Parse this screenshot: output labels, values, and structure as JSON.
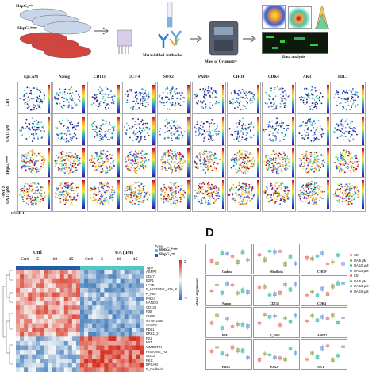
{
  "workflow": {
    "cell_label_top": "HepG₂ᶜʳᵒⁿ",
    "cell_label_bottom": "HepG₂ᴬᵛⁿᵘᵉ",
    "antibody_label": "Metal-labled antibodies",
    "cytometry_label": "Mass of Cytometry",
    "analysis_label": "Data analysis"
  },
  "tsne": {
    "markers": [
      "EpCAM",
      "Nanog",
      "CD133",
      "OCT-4",
      "SOX2",
      "PADI4",
      "CHOP",
      "CDK4",
      "AKT",
      "PDL1"
    ],
    "rows": [
      "Ctrl",
      "UA 15 μM",
      "HepG₂ᴬᵛⁿᵘᵉ",
      "UA 15 μM"
    ],
    "x_axis": "t-SNE 1",
    "y_axis": "t-SNE 2"
  },
  "heatmap": {
    "group_labels": [
      "Ctrl",
      "UA (μM)"
    ],
    "col_labels": [
      "Ctrl",
      "5",
      "10",
      "15",
      "Ctrl",
      "5",
      "10",
      "15"
    ],
    "legend_title": "Type",
    "legend_items": [
      "HepG₂ᴬᵛⁿᵘᵉ",
      "HepG₂ᶜʳᵒⁿ"
    ],
    "genes": [
      "Type",
      "ASPP2",
      "CD47",
      "E2F1",
      "LC3B",
      "P_HISTONE_H2A_S",
      "P_P53",
      "PADI4",
      "NANOG",
      "CD133",
      "P38",
      "CHOP",
      "MTOR1056",
      "CASP3",
      "PDL1",
      "ERK1_2",
      "P21",
      "BAT",
      "VIMENTIN",
      "HISTONE_H3",
      "SOX2",
      "PKC",
      "EPCAM",
      "E_Cadherin"
    ],
    "scale_max": "2",
    "scale_min": "-2",
    "colors": {
      "high": "#d7301f",
      "mid": "#f7f7f7",
      "low": "#2c6fb5",
      "ctrl_bar": "#1a5fa8",
      "ua_bar": "#52c7c0"
    }
  },
  "boxplots": {
    "panel_letter": "D",
    "y_axis": "Mean expression",
    "legend_items": [
      "Ctrl",
      "UA 5 μM",
      "UA 10 μM",
      "UA 15 μM",
      "Ctrl",
      "UA 5 μM",
      "UA 10 μM",
      "UA 15 μM"
    ],
    "legend_colors": [
      "#e8635a",
      "#8a9a3c",
      "#27b5a0",
      "#5b8fd6",
      "#e8635a",
      "#8a9a3c",
      "#27b5a0",
      "#5b8fd6"
    ],
    "panels": [
      "Cadms",
      "Mindlicin",
      "CHOP",
      "Nanog",
      "CD133",
      "CDK4",
      "P38",
      "P_ERK",
      "ASPP2",
      "PDL1",
      "SOX2",
      "AKT"
    ]
  }
}
